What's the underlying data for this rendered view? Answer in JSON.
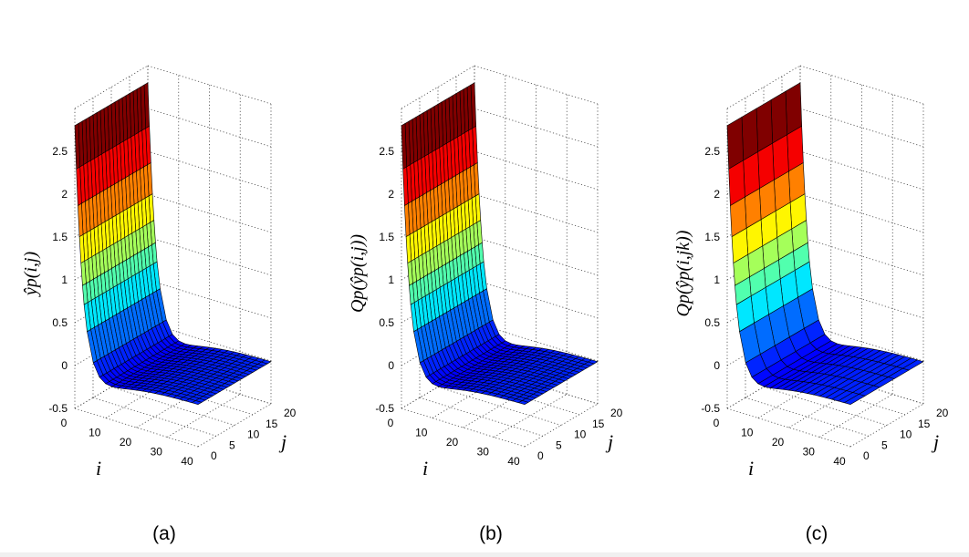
{
  "chart_data": [
    {
      "type": "surface",
      "caption": "(a)",
      "xlabel": "i",
      "ylabel": "j",
      "zlabel": "ŷp(i,j)",
      "zlabel_sub": "p",
      "zlabel_arg": "(i, j)",
      "xticks": [
        "0",
        "10",
        "20",
        "30",
        "40"
      ],
      "yticks": [
        "0",
        "5",
        "10",
        "15",
        "20"
      ],
      "zticks": [
        "-0.5",
        "0",
        "0.5",
        "1",
        "1.5",
        "2",
        "2.5"
      ],
      "xlim": [
        0,
        40
      ],
      "ylim": [
        0,
        20
      ],
      "zlim": [
        -0.5,
        3
      ],
      "start_value": 2.8,
      "asymptote": 0.0,
      "dip": -0.45,
      "colormap": "jet"
    },
    {
      "type": "surface",
      "caption": "(b)",
      "xlabel": "i",
      "ylabel": "j",
      "zlabel": "Qp(ŷp(i,j))",
      "zlabel_sub": "p",
      "zlabel_arg": "(ŷp(i, j))",
      "xticks": [
        "0",
        "10",
        "20",
        "30",
        "40"
      ],
      "yticks": [
        "0",
        "5",
        "10",
        "15",
        "20"
      ],
      "zticks": [
        "-0.5",
        "0",
        "0.5",
        "1",
        "1.5",
        "2",
        "2.5"
      ],
      "xlim": [
        0,
        40
      ],
      "ylim": [
        0,
        20
      ],
      "zlim": [
        -0.5,
        3
      ],
      "start_value": 2.8,
      "asymptote": 0.0,
      "dip": -0.45,
      "colormap": "jet"
    },
    {
      "type": "surface",
      "caption": "(c)",
      "xlabel": "i",
      "ylabel": "j",
      "zlabel": "Qp(ŷp(i,jk))",
      "zlabel_sub": "p",
      "zlabel_arg": "(ŷp(i, jk))",
      "xticks": [
        "0",
        "10",
        "20",
        "30",
        "40"
      ],
      "yticks": [
        "0",
        "5",
        "10",
        "15",
        "20"
      ],
      "zticks": [
        "-0.5",
        "0",
        "0.5",
        "1",
        "1.5",
        "2",
        "2.5"
      ],
      "xlim": [
        0,
        40
      ],
      "ylim": [
        0,
        20
      ],
      "zlim": [
        -0.5,
        3
      ],
      "start_value": 2.8,
      "asymptote": 0.0,
      "dip": -0.45,
      "colormap": "jet",
      "y_segments": 5
    }
  ]
}
